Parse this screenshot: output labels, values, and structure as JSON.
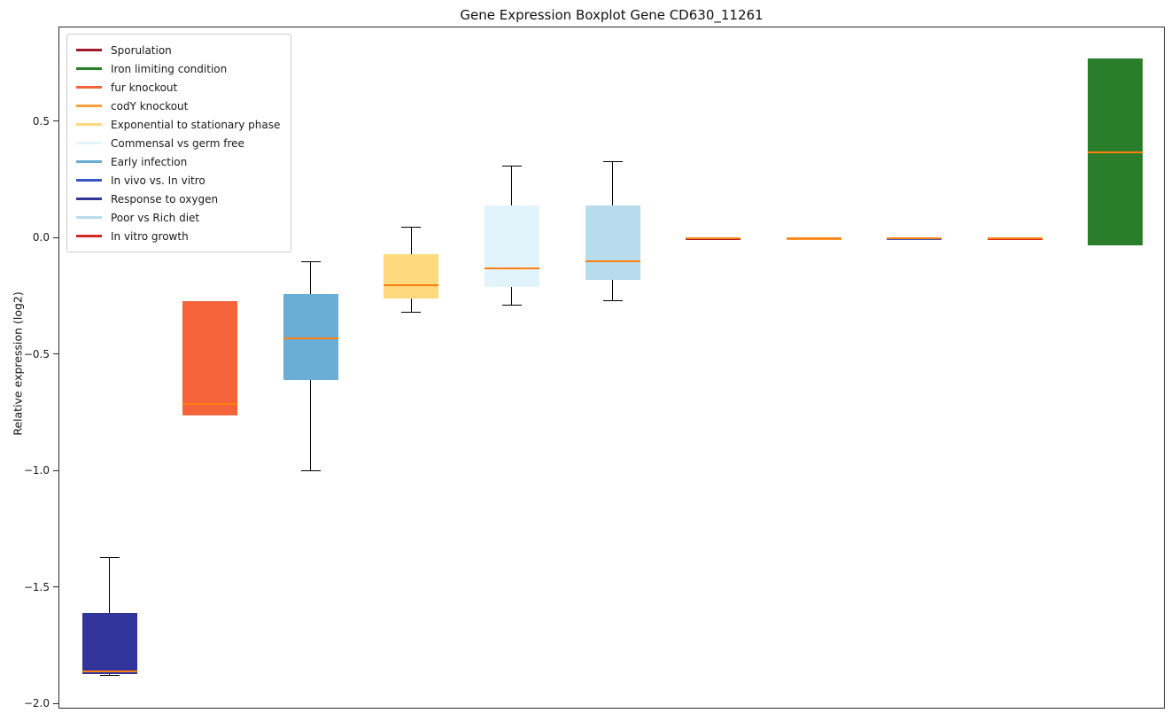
{
  "title": "Gene Expression Boxplot Gene CD630_11261",
  "ylabel": "Relative expression (log2)",
  "chart_data": {
    "type": "boxplot",
    "title": "Gene Expression Boxplot Gene CD630_11261",
    "xlabel": "",
    "ylabel": "Relative expression (log2)",
    "ylim": [
      -2.02,
      0.9
    ],
    "grid": false,
    "legend_position": "upper left",
    "median_color": "#ff7f0e",
    "yticks": [
      {
        "value": 0.5,
        "label": "0.5"
      },
      {
        "value": 0.0,
        "label": "0.0"
      },
      {
        "value": -0.5,
        "label": "−0.5"
      },
      {
        "value": -1.0,
        "label": "−1.0"
      },
      {
        "value": -1.5,
        "label": "−1.5"
      },
      {
        "value": -2.0,
        "label": "−2.0"
      }
    ],
    "legend": [
      {
        "label": "Sporulation",
        "color": "#a11a2e"
      },
      {
        "label": "Iron limiting condition",
        "color": "#2a7d2a"
      },
      {
        "label": "fur knockout",
        "color": "#f4633a"
      },
      {
        "label": "codY knockout",
        "color": "#f9a13c"
      },
      {
        "label": "Exponential to stationary phase",
        "color": "#ffd97d"
      },
      {
        "label": "Commensal vs germ free",
        "color": "#e2f3fb"
      },
      {
        "label": "Early infection",
        "color": "#6aaed6"
      },
      {
        "label": "In vivo vs. In vitro",
        "color": "#3a55c5"
      },
      {
        "label": "Response to oxygen",
        "color": "#32339b"
      },
      {
        "label": "Poor vs Rich diet",
        "color": "#b8dcec"
      },
      {
        "label": "In vitro growth",
        "color": "#d62828"
      }
    ],
    "series": [
      {
        "name": "Response to oxygen",
        "color": "#32339b",
        "low": -1.88,
        "q1": -1.87,
        "median": -1.86,
        "q3": -1.61,
        "high": -1.37
      },
      {
        "name": "fur knockout",
        "color": "#f4633a",
        "low": -0.76,
        "q1": -0.76,
        "median": -0.71,
        "q3": -0.27,
        "high": -0.27
      },
      {
        "name": "Early infection",
        "color": "#6aaed6",
        "low": -1.0,
        "q1": -0.61,
        "median": -0.43,
        "q3": -0.24,
        "high": -0.1
      },
      {
        "name": "Exponential to stationary phase",
        "color": "#ffd97d",
        "low": -0.32,
        "q1": -0.26,
        "median": -0.2,
        "q3": -0.07,
        "high": 0.05
      },
      {
        "name": "Commensal vs germ free",
        "color": "#e2f3fb",
        "low": -0.29,
        "q1": -0.21,
        "median": -0.13,
        "q3": 0.14,
        "high": 0.31
      },
      {
        "name": "Poor vs Rich diet",
        "color": "#b8dcec",
        "low": -0.27,
        "q1": -0.18,
        "median": -0.1,
        "q3": 0.14,
        "high": 0.33
      },
      {
        "name": "Sporulation",
        "color": "#a11a2e",
        "low": -0.005,
        "q1": -0.005,
        "median": 0.0,
        "q3": 0.005,
        "high": 0.005
      },
      {
        "name": "codY knockout",
        "color": "#f9a13c",
        "low": -0.005,
        "q1": -0.005,
        "median": 0.0,
        "q3": 0.005,
        "high": 0.005
      },
      {
        "name": "In vivo vs. In vitro",
        "color": "#3a55c5",
        "low": -0.005,
        "q1": -0.005,
        "median": 0.0,
        "q3": 0.005,
        "high": 0.005
      },
      {
        "name": "In vitro growth",
        "color": "#d62828",
        "low": -0.005,
        "q1": -0.005,
        "median": 0.0,
        "q3": 0.005,
        "high": 0.005
      },
      {
        "name": "Iron limiting condition",
        "color": "#2a7d2a",
        "low": -0.03,
        "q1": -0.03,
        "median": 0.37,
        "q3": 0.77,
        "high": 0.77
      }
    ]
  }
}
